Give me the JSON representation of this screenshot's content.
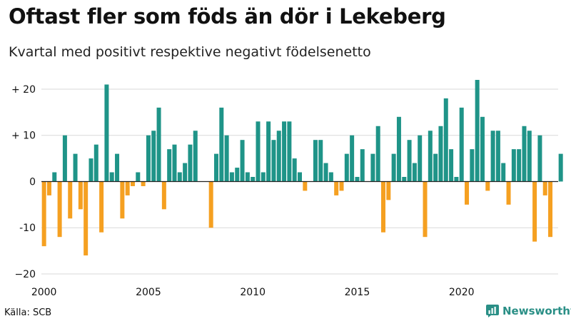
{
  "title": "Oftast fler som föds än dör i Lekeberg",
  "subtitle": "Kvartal med positivt respektive negativt födelsenetto",
  "source": "Källa: SCB",
  "brand": {
    "name": "Newsworthy",
    "icon": "newsworthy-logo-icon"
  },
  "colors": {
    "positive": "#1f9488",
    "negative": "#f5a021",
    "grid": "#d9d9d9",
    "axis": "#222222",
    "brand": "#2a8f86"
  },
  "chart_data": {
    "type": "bar",
    "title": "Oftast fler som föds än dör i Lekeberg",
    "subtitle": "Kvartal med positivt respektive negativt födelsenetto",
    "xlabel": "",
    "ylabel": "",
    "ylim": [
      -20,
      22
    ],
    "xlim": [
      2000,
      2024.75
    ],
    "y_ticks": [
      {
        "value": 20,
        "label": "+ 20"
      },
      {
        "value": 10,
        "label": "+ 10"
      },
      {
        "value": 0,
        "label": "0"
      },
      {
        "value": -10,
        "label": "-10"
      },
      {
        "value": -20,
        "label": "−20"
      }
    ],
    "x_ticks": [
      {
        "value": 2000,
        "label": "2000"
      },
      {
        "value": 2005,
        "label": "2005"
      },
      {
        "value": 2010,
        "label": "2010"
      },
      {
        "value": 2015,
        "label": "2015"
      },
      {
        "value": 2020,
        "label": "2020"
      }
    ],
    "start_year": 2000,
    "quarters_per_year": 4,
    "values": [
      -14,
      -3,
      2,
      -12,
      10,
      -8,
      6,
      -6,
      -16,
      5,
      8,
      -11,
      21,
      2,
      6,
      -8,
      -3,
      -1,
      2,
      -1,
      10,
      11,
      16,
      -6,
      7,
      8,
      2,
      4,
      8,
      11,
      0,
      0,
      -10,
      6,
      16,
      10,
      2,
      3,
      9,
      2,
      1,
      13,
      2,
      13,
      9,
      11,
      13,
      13,
      5,
      2,
      -2,
      0,
      9,
      9,
      4,
      2,
      -3,
      -2,
      6,
      10,
      1,
      7,
      0,
      6,
      12,
      -11,
      -4,
      6,
      14,
      1,
      9,
      4,
      10,
      -12,
      11,
      6,
      12,
      18,
      7,
      1,
      16,
      -5,
      7,
      22,
      14,
      -2,
      11,
      11,
      4,
      -5,
      7,
      7,
      12,
      11,
      -13,
      10,
      -3,
      -12,
      0,
      6
    ]
  }
}
